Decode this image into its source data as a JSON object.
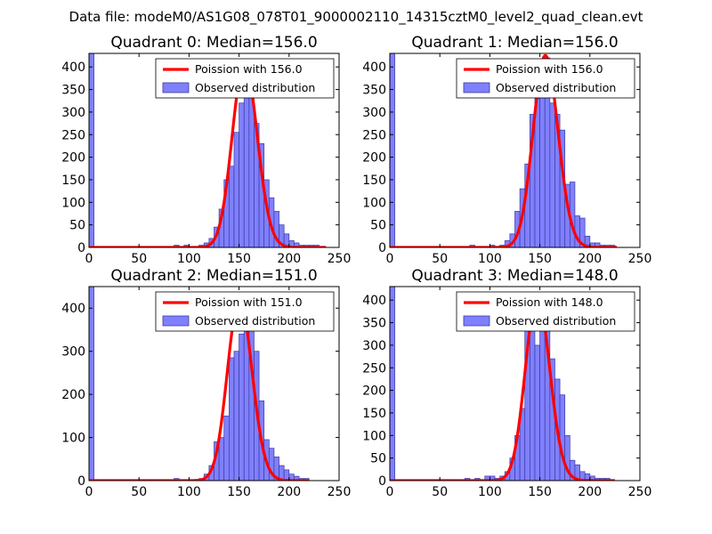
{
  "figure": {
    "suptitle": "Data file: modeM0/AS1G08_078T01_9000002110_14315cztM0_level2_quad_clean.evt"
  },
  "colors": {
    "hist_fill": "#8080ff",
    "hist_edge": "#3a3aa0",
    "poisson": "#ff0000",
    "axes": "#000000"
  },
  "chart_data": [
    {
      "type": "bar",
      "title": "Quadrant 0: Median=156.0",
      "median": 156.0,
      "xlim": [
        0,
        250
      ],
      "ylim": [
        0,
        430
      ],
      "xticks": [
        0,
        50,
        100,
        150,
        200,
        250
      ],
      "yticks": [
        0,
        50,
        100,
        150,
        200,
        250,
        300,
        350,
        400
      ],
      "legend": {
        "position": "top-right",
        "entries": [
          "Poission with 156.0",
          "Observed distribution"
        ]
      },
      "bin_width": 5,
      "bins": [
        {
          "x": 0,
          "count": 430
        },
        {
          "x": 85,
          "count": 5
        },
        {
          "x": 95,
          "count": 5
        },
        {
          "x": 110,
          "count": 5
        },
        {
          "x": 115,
          "count": 10
        },
        {
          "x": 120,
          "count": 20
        },
        {
          "x": 125,
          "count": 45
        },
        {
          "x": 130,
          "count": 85
        },
        {
          "x": 135,
          "count": 150
        },
        {
          "x": 140,
          "count": 180
        },
        {
          "x": 145,
          "count": 255
        },
        {
          "x": 150,
          "count": 320
        },
        {
          "x": 155,
          "count": 390
        },
        {
          "x": 160,
          "count": 360
        },
        {
          "x": 165,
          "count": 275
        },
        {
          "x": 170,
          "count": 230
        },
        {
          "x": 175,
          "count": 150
        },
        {
          "x": 180,
          "count": 110
        },
        {
          "x": 185,
          "count": 80
        },
        {
          "x": 190,
          "count": 50
        },
        {
          "x": 195,
          "count": 30
        },
        {
          "x": 200,
          "count": 15
        },
        {
          "x": 205,
          "count": 10
        },
        {
          "x": 210,
          "count": 5
        },
        {
          "x": 215,
          "count": 5
        },
        {
          "x": 220,
          "count": 5
        },
        {
          "x": 225,
          "count": 5
        }
      ],
      "poisson": {
        "label": "Poission with 156.0",
        "mean": 156.0,
        "xrange": [
          0,
          237
        ],
        "peak": 410
      }
    },
    {
      "type": "bar",
      "title": "Quadrant 1: Median=156.0",
      "median": 156.0,
      "xlim": [
        0,
        250
      ],
      "ylim": [
        0,
        430
      ],
      "xticks": [
        0,
        50,
        100,
        150,
        200,
        250
      ],
      "yticks": [
        0,
        50,
        100,
        150,
        200,
        250,
        300,
        350,
        400
      ],
      "legend": {
        "position": "top-right",
        "entries": [
          "Poission with 156.0",
          "Observed distribution"
        ]
      },
      "bin_width": 5,
      "bins": [
        {
          "x": 0,
          "count": 430
        },
        {
          "x": 80,
          "count": 5
        },
        {
          "x": 100,
          "count": 5
        },
        {
          "x": 110,
          "count": 5
        },
        {
          "x": 115,
          "count": 15
        },
        {
          "x": 120,
          "count": 30
        },
        {
          "x": 125,
          "count": 80
        },
        {
          "x": 130,
          "count": 130
        },
        {
          "x": 135,
          "count": 185
        },
        {
          "x": 140,
          "count": 295
        },
        {
          "x": 145,
          "count": 330
        },
        {
          "x": 150,
          "count": 375
        },
        {
          "x": 155,
          "count": 420
        },
        {
          "x": 160,
          "count": 320
        },
        {
          "x": 165,
          "count": 295
        },
        {
          "x": 170,
          "count": 260
        },
        {
          "x": 175,
          "count": 140
        },
        {
          "x": 180,
          "count": 145
        },
        {
          "x": 185,
          "count": 70
        },
        {
          "x": 190,
          "count": 65
        },
        {
          "x": 195,
          "count": 25
        },
        {
          "x": 200,
          "count": 10
        },
        {
          "x": 205,
          "count": 10
        },
        {
          "x": 210,
          "count": 5
        },
        {
          "x": 215,
          "count": 5
        },
        {
          "x": 220,
          "count": 5
        }
      ],
      "poisson": {
        "label": "Poission with 156.0",
        "mean": 156.0,
        "xrange": [
          0,
          227
        ],
        "peak": 425
      }
    },
    {
      "type": "bar",
      "title": "Quadrant 2: Median=151.0",
      "median": 151.0,
      "xlim": [
        0,
        250
      ],
      "ylim": [
        0,
        450
      ],
      "xticks": [
        0,
        50,
        100,
        150,
        200,
        250
      ],
      "yticks": [
        0,
        100,
        200,
        300,
        400
      ],
      "legend": {
        "position": "top-right",
        "entries": [
          "Poission with 151.0",
          "Observed distribution"
        ]
      },
      "bin_width": 5,
      "bins": [
        {
          "x": 0,
          "count": 450
        },
        {
          "x": 85,
          "count": 5
        },
        {
          "x": 110,
          "count": 5
        },
        {
          "x": 115,
          "count": 15
        },
        {
          "x": 120,
          "count": 35
        },
        {
          "x": 125,
          "count": 90
        },
        {
          "x": 130,
          "count": 100
        },
        {
          "x": 135,
          "count": 150
        },
        {
          "x": 140,
          "count": 285
        },
        {
          "x": 145,
          "count": 300
        },
        {
          "x": 150,
          "count": 340
        },
        {
          "x": 155,
          "count": 410
        },
        {
          "x": 160,
          "count": 360
        },
        {
          "x": 165,
          "count": 300
        },
        {
          "x": 170,
          "count": 185
        },
        {
          "x": 175,
          "count": 95
        },
        {
          "x": 180,
          "count": 75
        },
        {
          "x": 185,
          "count": 55
        },
        {
          "x": 190,
          "count": 35
        },
        {
          "x": 195,
          "count": 25
        },
        {
          "x": 200,
          "count": 15
        },
        {
          "x": 205,
          "count": 10
        },
        {
          "x": 210,
          "count": 5
        },
        {
          "x": 215,
          "count": 5
        }
      ],
      "poisson": {
        "label": "Poission with 151.0",
        "mean": 151.0,
        "xrange": [
          0,
          220
        ],
        "peak": 420
      }
    },
    {
      "type": "bar",
      "title": "Quadrant 3: Median=148.0",
      "median": 148.0,
      "xlim": [
        0,
        250
      ],
      "ylim": [
        0,
        430
      ],
      "xticks": [
        0,
        50,
        100,
        150,
        200,
        250
      ],
      "yticks": [
        0,
        50,
        100,
        150,
        200,
        250,
        300,
        350,
        400
      ],
      "legend": {
        "position": "top-right",
        "entries": [
          "Poission with 148.0",
          "Observed distribution"
        ]
      },
      "bin_width": 5,
      "bins": [
        {
          "x": 0,
          "count": 430
        },
        {
          "x": 75,
          "count": 5
        },
        {
          "x": 85,
          "count": 5
        },
        {
          "x": 95,
          "count": 10
        },
        {
          "x": 100,
          "count": 10
        },
        {
          "x": 105,
          "count": 5
        },
        {
          "x": 110,
          "count": 10
        },
        {
          "x": 115,
          "count": 20
        },
        {
          "x": 120,
          "count": 50
        },
        {
          "x": 125,
          "count": 100
        },
        {
          "x": 130,
          "count": 160
        },
        {
          "x": 135,
          "count": 350
        },
        {
          "x": 140,
          "count": 400
        },
        {
          "x": 145,
          "count": 300
        },
        {
          "x": 150,
          "count": 390
        },
        {
          "x": 155,
          "count": 340
        },
        {
          "x": 160,
          "count": 270
        },
        {
          "x": 165,
          "count": 225
        },
        {
          "x": 170,
          "count": 190
        },
        {
          "x": 175,
          "count": 100
        },
        {
          "x": 180,
          "count": 45
        },
        {
          "x": 185,
          "count": 35
        },
        {
          "x": 190,
          "count": 20
        },
        {
          "x": 195,
          "count": 15
        },
        {
          "x": 200,
          "count": 10
        },
        {
          "x": 205,
          "count": 5
        },
        {
          "x": 210,
          "count": 5
        },
        {
          "x": 215,
          "count": 5
        }
      ],
      "poisson": {
        "label": "Poission with 148.0",
        "mean": 148.0,
        "xrange": [
          0,
          225
        ],
        "peak": 410
      }
    }
  ]
}
